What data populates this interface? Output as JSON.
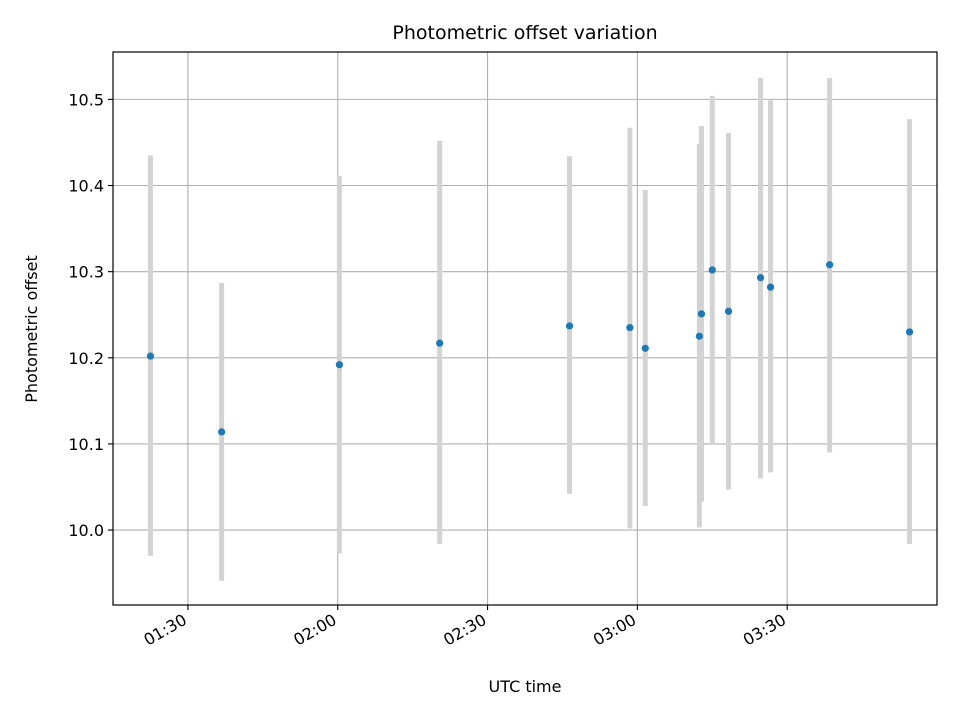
{
  "chart_data": {
    "type": "scatter",
    "title": "Photometric offset variation",
    "xlabel": "UTC time",
    "ylabel": "Photometric offset",
    "x_axis": {
      "kind": "time",
      "range": [
        "01:15",
        "04:00"
      ],
      "ticks": [
        "01:30",
        "02:00",
        "02:30",
        "03:00",
        "03:30"
      ]
    },
    "y_axis": {
      "range": [
        9.913,
        10.555
      ],
      "ticks": [
        "10.0",
        "10.1",
        "10.2",
        "10.3",
        "10.4",
        "10.5"
      ]
    },
    "grid": true,
    "colors": {
      "marker": "#1f77b4",
      "errorbar": "#d3d3d3",
      "grid": "#b0b0b0",
      "frame": "#000000"
    },
    "series": [
      {
        "points": [
          {
            "time": "01:22:30",
            "y": 10.202,
            "y_low": 9.97,
            "y_high": 10.435
          },
          {
            "time": "01:36:45",
            "y": 10.114,
            "y_low": 9.941,
            "y_high": 10.287
          },
          {
            "time": "02:00:20",
            "y": 10.192,
            "y_low": 9.973,
            "y_high": 10.411
          },
          {
            "time": "02:20:25",
            "y": 10.217,
            "y_low": 9.984,
            "y_high": 10.452
          },
          {
            "time": "02:46:25",
            "y": 10.237,
            "y_low": 10.042,
            "y_high": 10.434
          },
          {
            "time": "02:58:30",
            "y": 10.235,
            "y_low": 10.002,
            "y_high": 10.467
          },
          {
            "time": "03:01:35",
            "y": 10.211,
            "y_low": 10.028,
            "y_high": 10.395
          },
          {
            "time": "03:12:25",
            "y": 10.225,
            "y_low": 10.003,
            "y_high": 10.448
          },
          {
            "time": "03:12:50",
            "y": 10.251,
            "y_low": 10.033,
            "y_high": 10.469
          },
          {
            "time": "03:15:00",
            "y": 10.302,
            "y_low": 10.1,
            "y_high": 10.504
          },
          {
            "time": "03:18:15",
            "y": 10.254,
            "y_low": 10.047,
            "y_high": 10.461
          },
          {
            "time": "03:24:40",
            "y": 10.293,
            "y_low": 10.06,
            "y_high": 10.525
          },
          {
            "time": "03:26:40",
            "y": 10.282,
            "y_low": 10.067,
            "y_high": 10.499
          },
          {
            "time": "03:38:30",
            "y": 10.308,
            "y_low": 10.09,
            "y_high": 10.525
          },
          {
            "time": "03:54:30",
            "y": 10.23,
            "y_low": 9.984,
            "y_high": 10.477
          }
        ]
      }
    ]
  }
}
